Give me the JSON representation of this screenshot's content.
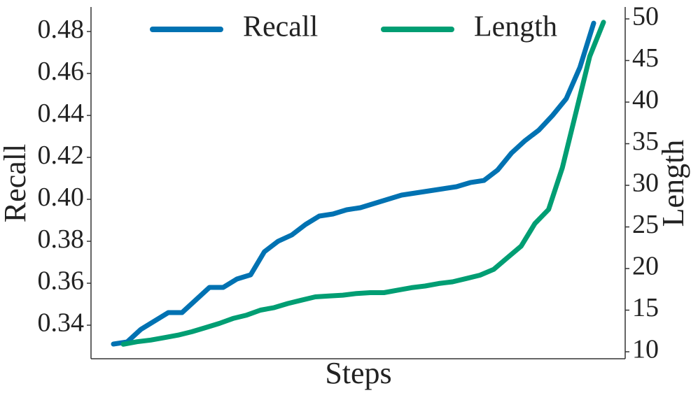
{
  "chart_data": {
    "type": "line",
    "x_label": "Steps",
    "y_label": "Recall",
    "y2_label": "Length",
    "ylim": [
      0.324,
      0.4917
    ],
    "yticks": [
      0.34,
      0.36,
      0.38,
      {
        "value": 0.4,
        "label": "0.40"
      },
      0.42,
      0.44,
      0.46,
      0.48
    ],
    "y2lim": [
      9.16,
      51.43
    ],
    "y2ticks": [
      10,
      15,
      20,
      25,
      30,
      35,
      40,
      45,
      50
    ],
    "legend": "upper center",
    "series": [
      {
        "name": "Recall",
        "color": "#0072b2",
        "axis": "y",
        "values": [
          0.331,
          0.332,
          0.338,
          0.342,
          0.346,
          0.346,
          0.352,
          0.358,
          0.358,
          0.362,
          0.364,
          0.375,
          0.38,
          0.383,
          0.388,
          0.392,
          0.393,
          0.395,
          0.396,
          0.398,
          0.4,
          0.402,
          0.403,
          0.404,
          0.405,
          0.406,
          0.408,
          0.409,
          0.414,
          0.422,
          0.428,
          0.433,
          0.44,
          0.448,
          0.463,
          0.484
        ]
      },
      {
        "name": "Length",
        "color": "#009e73",
        "axis": "y2",
        "values": [
          10.9,
          11.2,
          11.4,
          11.7,
          12.0,
          12.4,
          12.9,
          13.4,
          14.0,
          14.4,
          15.0,
          15.3,
          15.8,
          16.2,
          16.6,
          16.7,
          16.8,
          17.0,
          17.1,
          17.1,
          17.4,
          17.7,
          17.9,
          18.2,
          18.4,
          18.8,
          19.2,
          19.9,
          21.3,
          22.7,
          25.4,
          27.1,
          32.1,
          38.8,
          45.5,
          49.6
        ]
      }
    ]
  }
}
